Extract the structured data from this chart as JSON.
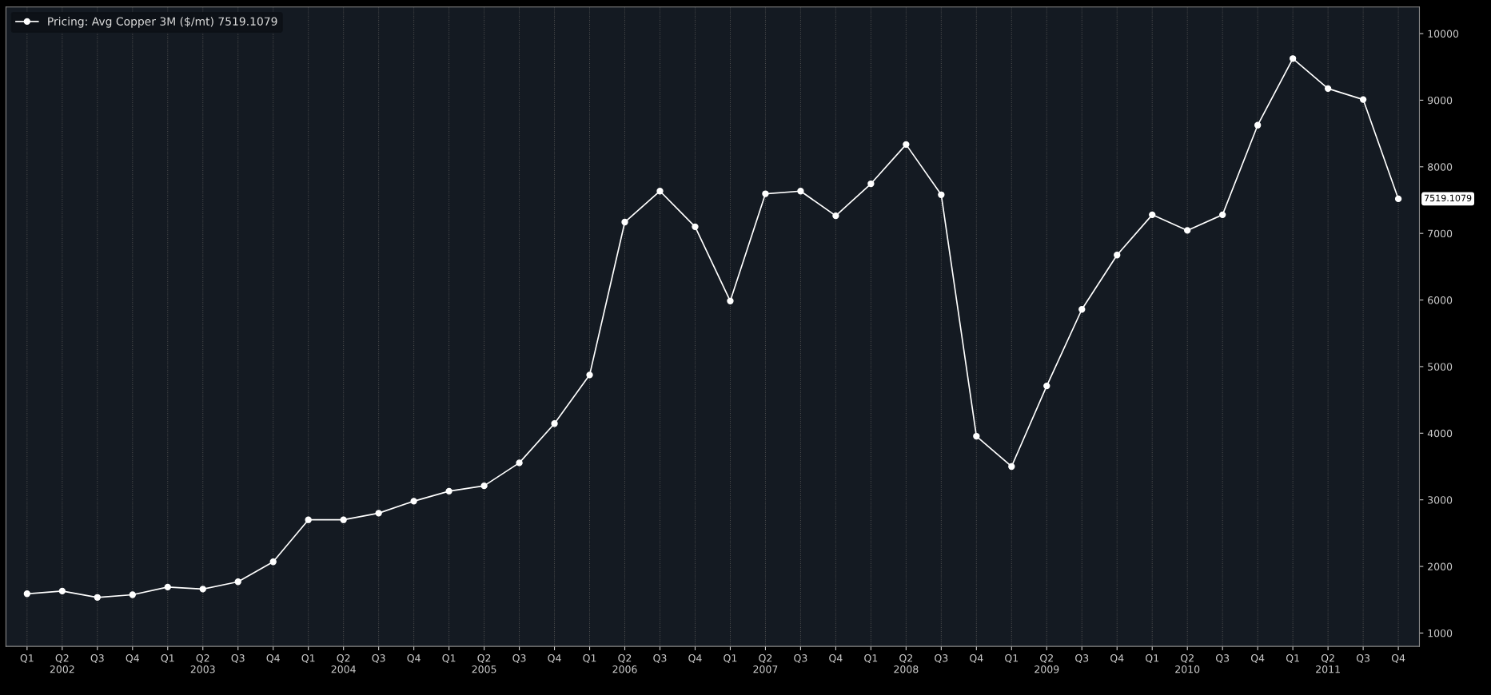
{
  "chart_data": {
    "type": "line",
    "categories": [
      "Q1",
      "Q2\n2002",
      "Q3",
      "Q4",
      "Q1",
      "Q2\n2003",
      "Q3",
      "Q4",
      "Q1",
      "Q2\n2004",
      "Q3",
      "Q4",
      "Q1",
      "Q2\n2005",
      "Q3",
      "Q4",
      "Q1",
      "Q2\n2006",
      "Q3",
      "Q4",
      "Q1",
      "Q2\n2007",
      "Q3",
      "Q4",
      "Q1",
      "Q2\n2008",
      "Q3",
      "Q4",
      "Q1",
      "Q2\n2009",
      "Q3",
      "Q4",
      "Q1",
      "Q2\n2010",
      "Q3",
      "Q4",
      "Q1",
      "Q2\n2011",
      "Q3",
      "Q4"
    ],
    "series": [
      {
        "name": "Pricing: Avg Copper 3M ($/mt) 7519.1079",
        "color": "#ffffff",
        "values": [
          1590,
          1630,
          1535,
          1575,
          1690,
          1660,
          1770,
          2070,
          2700,
          2700,
          2800,
          2980,
          3130,
          3210,
          3555,
          4145,
          4875,
          7170,
          7635,
          7100,
          5985,
          7595,
          7635,
          7265,
          7745,
          8335,
          7580,
          3955,
          3500,
          4710,
          5860,
          6675,
          7280,
          7045,
          7280,
          8625,
          9625,
          9175,
          9010,
          7519
        ]
      }
    ],
    "annotations": [
      "7519.1079"
    ],
    "ylim": [
      800,
      10400
    ],
    "yticks": [
      1000,
      2000,
      3000,
      4000,
      5000,
      6000,
      7000,
      8000,
      9000,
      10000
    ],
    "grid": "x",
    "legend": "top left",
    "marker": "circle",
    "line_style": "solid"
  }
}
